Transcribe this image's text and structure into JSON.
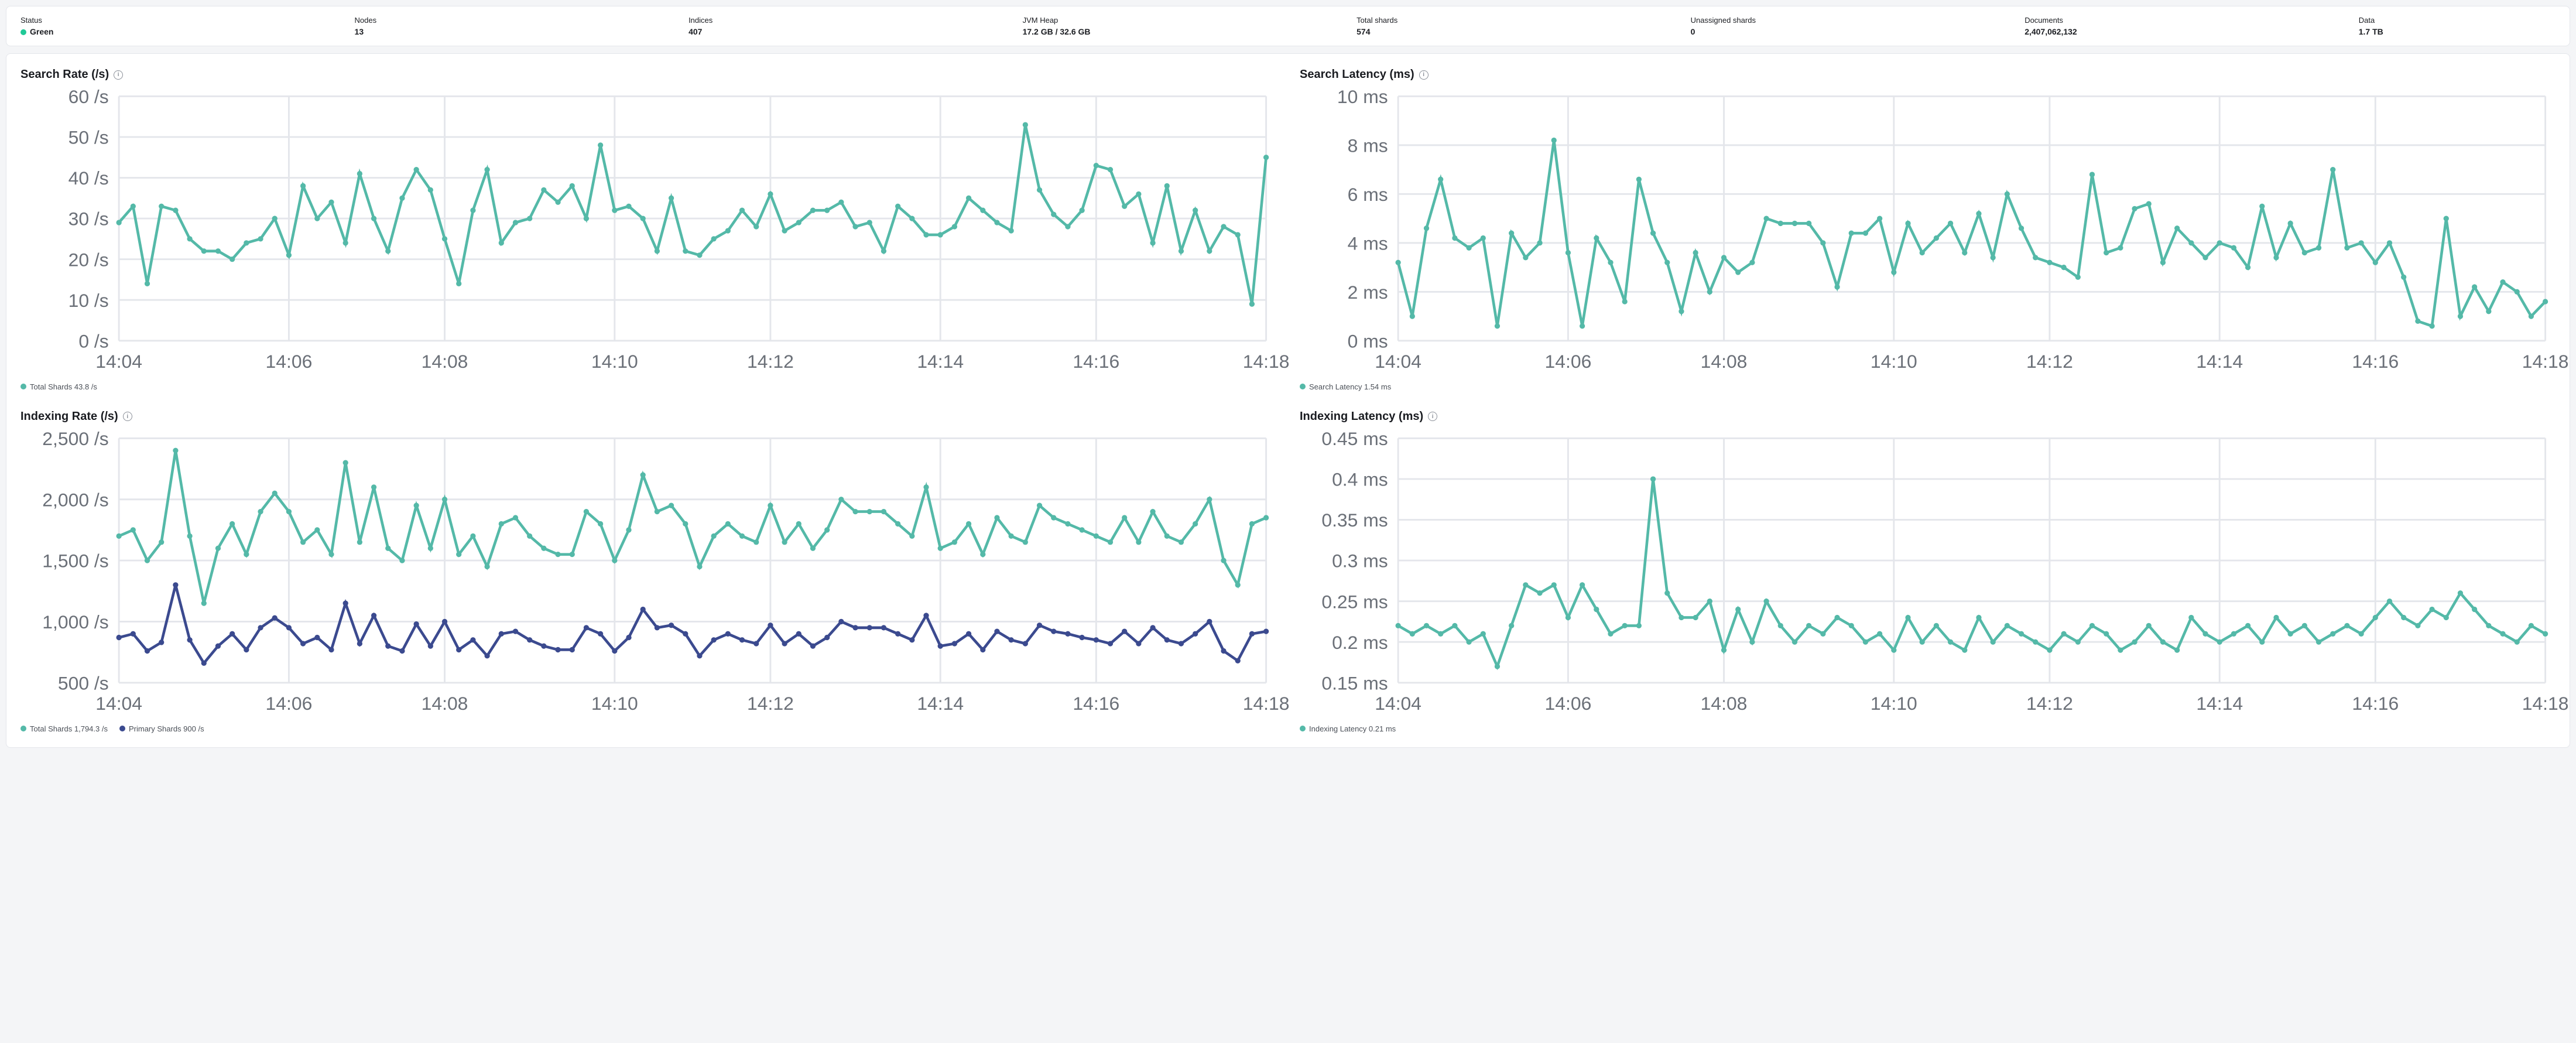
{
  "colors": {
    "teal": "#54b9a8",
    "navy": "#3b4a8f",
    "grid": "#e4e6eb",
    "axis_text": "#6b7078",
    "status_green": "#20c997"
  },
  "stats": [
    {
      "key": "status",
      "label": "Status",
      "value": "Green",
      "dot_color": "#20c997"
    },
    {
      "key": "nodes",
      "label": "Nodes",
      "value": "13"
    },
    {
      "key": "indices",
      "label": "Indices",
      "value": "407"
    },
    {
      "key": "jvm",
      "label": "JVM Heap",
      "value": "17.2 GB / 32.6 GB"
    },
    {
      "key": "shards",
      "label": "Total shards",
      "value": "574"
    },
    {
      "key": "unassigned",
      "label": "Unassigned shards",
      "value": "0"
    },
    {
      "key": "docs",
      "label": "Documents",
      "value": "2,407,062,132"
    },
    {
      "key": "data",
      "label": "Data",
      "value": "1.7 TB",
      "narrow": true
    }
  ],
  "x_ticks": [
    "14:04",
    "14:06",
    "14:08",
    "14:10",
    "14:12",
    "14:14",
    "14:16",
    "14:18"
  ],
  "charts": {
    "search_rate": {
      "title": "Search Rate (/s)",
      "y_ticks": [
        0,
        10,
        20,
        30,
        40,
        50,
        60
      ],
      "y_unit": "/s",
      "y_min": 0,
      "y_max": 60,
      "series": [
        {
          "name": "Total Shards",
          "color": "#54b9a8",
          "legend_value": "43.8 /s",
          "data": [
            29,
            33,
            14,
            33,
            32,
            25,
            22,
            22,
            20,
            24,
            25,
            30,
            21,
            38,
            30,
            34,
            24,
            41,
            30,
            22,
            35,
            42,
            37,
            25,
            14,
            32,
            42,
            24,
            29,
            30,
            37,
            34,
            38,
            30,
            48,
            32,
            33,
            30,
            22,
            35,
            22,
            21,
            25,
            27,
            32,
            28,
            36,
            27,
            29,
            32,
            32,
            34,
            28,
            29,
            22,
            33,
            30,
            26,
            26,
            28,
            35,
            32,
            29,
            27,
            53,
            37,
            31,
            28,
            32,
            43,
            42,
            33,
            36,
            24,
            38,
            22,
            32,
            22,
            28,
            26,
            9,
            45
          ]
        }
      ]
    },
    "search_latency": {
      "title": "Search Latency (ms)",
      "y_ticks": [
        0,
        2,
        4,
        6,
        8,
        10
      ],
      "y_unit": "ms",
      "y_min": 0,
      "y_max": 10,
      "series": [
        {
          "name": "Search Latency",
          "color": "#54b9a8",
          "legend_value": "1.54 ms",
          "data": [
            3.2,
            1.0,
            4.6,
            6.6,
            4.2,
            3.8,
            4.2,
            0.6,
            4.4,
            3.4,
            4.0,
            8.2,
            3.6,
            0.6,
            4.2,
            3.2,
            1.6,
            6.6,
            4.4,
            3.2,
            1.2,
            3.6,
            2.0,
            3.4,
            2.8,
            3.2,
            5.0,
            4.8,
            4.8,
            4.8,
            4.0,
            2.2,
            4.4,
            4.4,
            5.0,
            2.8,
            4.8,
            3.6,
            4.2,
            4.8,
            3.6,
            5.2,
            3.4,
            6.0,
            4.6,
            3.4,
            3.2,
            3.0,
            2.6,
            6.8,
            3.6,
            3.8,
            5.4,
            5.6,
            3.2,
            4.6,
            4.0,
            3.4,
            4.0,
            3.8,
            3.0,
            5.5,
            3.4,
            4.8,
            3.6,
            3.8,
            7.0,
            3.8,
            4.0,
            3.2,
            4.0,
            2.6,
            0.8,
            0.6,
            5.0,
            1.0,
            2.2,
            1.2,
            2.4,
            2.0,
            1.0,
            1.6
          ]
        }
      ]
    },
    "indexing_rate": {
      "title": "Indexing Rate (/s)",
      "y_ticks": [
        500,
        1000,
        1500,
        2000,
        2500
      ],
      "y_unit": "/s",
      "y_min": 500,
      "y_max": 2500,
      "series": [
        {
          "name": "Total Shards",
          "color": "#54b9a8",
          "legend_value": "1,794.3 /s",
          "data": [
            1700,
            1750,
            1500,
            1650,
            2400,
            1700,
            1150,
            1600,
            1800,
            1550,
            1900,
            2050,
            1900,
            1650,
            1750,
            1550,
            2300,
            1650,
            2100,
            1600,
            1500,
            1950,
            1600,
            2000,
            1550,
            1700,
            1450,
            1800,
            1850,
            1700,
            1600,
            1550,
            1550,
            1900,
            1800,
            1500,
            1750,
            2200,
            1900,
            1950,
            1800,
            1450,
            1700,
            1800,
            1700,
            1650,
            1950,
            1650,
            1800,
            1600,
            1750,
            2000,
            1900,
            1900,
            1900,
            1800,
            1700,
            2100,
            1600,
            1650,
            1800,
            1550,
            1850,
            1700,
            1650,
            1950,
            1850,
            1800,
            1750,
            1700,
            1650,
            1850,
            1650,
            1900,
            1700,
            1650,
            1800,
            2000,
            1500,
            1300,
            1800,
            1850
          ]
        },
        {
          "name": "Primary Shards",
          "color": "#3b4a8f",
          "legend_value": "900 /s",
          "data": [
            870,
            900,
            760,
            830,
            1300,
            850,
            660,
            800,
            900,
            770,
            950,
            1030,
            950,
            820,
            870,
            770,
            1150,
            820,
            1050,
            800,
            760,
            980,
            800,
            1000,
            770,
            850,
            720,
            900,
            920,
            850,
            800,
            770,
            770,
            950,
            900,
            760,
            870,
            1100,
            950,
            970,
            900,
            720,
            850,
            900,
            850,
            820,
            970,
            820,
            900,
            800,
            870,
            1000,
            950,
            950,
            950,
            900,
            850,
            1050,
            800,
            820,
            900,
            770,
            920,
            850,
            820,
            970,
            920,
            900,
            870,
            850,
            820,
            920,
            820,
            950,
            850,
            820,
            900,
            1000,
            760,
            680,
            900,
            920
          ]
        }
      ]
    },
    "indexing_latency": {
      "title": "Indexing Latency (ms)",
      "y_ticks": [
        0.15,
        0.2,
        0.25,
        0.3,
        0.35,
        0.4,
        0.45
      ],
      "y_unit": "ms",
      "y_min": 0.15,
      "y_max": 0.45,
      "series": [
        {
          "name": "Indexing Latency",
          "color": "#54b9a8",
          "legend_value": "0.21 ms",
          "data": [
            0.22,
            0.21,
            0.22,
            0.21,
            0.22,
            0.2,
            0.21,
            0.17,
            0.22,
            0.27,
            0.26,
            0.27,
            0.23,
            0.27,
            0.24,
            0.21,
            0.22,
            0.22,
            0.4,
            0.26,
            0.23,
            0.23,
            0.25,
            0.19,
            0.24,
            0.2,
            0.25,
            0.22,
            0.2,
            0.22,
            0.21,
            0.23,
            0.22,
            0.2,
            0.21,
            0.19,
            0.23,
            0.2,
            0.22,
            0.2,
            0.19,
            0.23,
            0.2,
            0.22,
            0.21,
            0.2,
            0.19,
            0.21,
            0.2,
            0.22,
            0.21,
            0.19,
            0.2,
            0.22,
            0.2,
            0.19,
            0.23,
            0.21,
            0.2,
            0.21,
            0.22,
            0.2,
            0.23,
            0.21,
            0.22,
            0.2,
            0.21,
            0.22,
            0.21,
            0.23,
            0.25,
            0.23,
            0.22,
            0.24,
            0.23,
            0.26,
            0.24,
            0.22,
            0.21,
            0.2,
            0.22,
            0.21
          ]
        }
      ]
    }
  }
}
